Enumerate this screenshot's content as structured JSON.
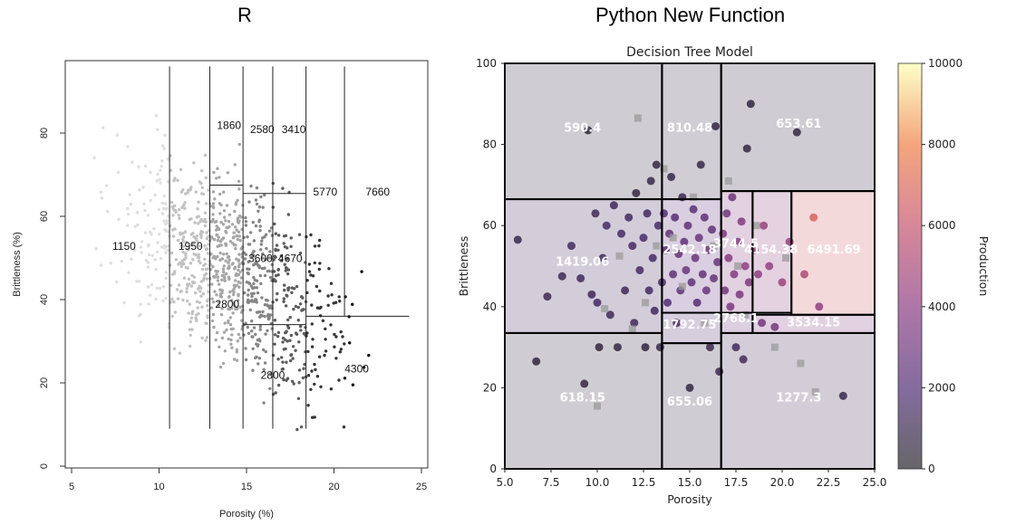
{
  "panels": {
    "left_title": "R",
    "right_title": "Python New Function"
  },
  "chart_data": [
    {
      "type": "scatter",
      "title": "",
      "xlabel": "Porosity (%)",
      "ylabel": "Brittleness (%)",
      "xlim": [
        5,
        25
      ],
      "ylim": [
        0,
        100
      ],
      "xticks": [
        5,
        10,
        15,
        20,
        25
      ],
      "yticks": [
        0,
        20,
        40,
        60,
        80
      ],
      "grid": false,
      "splits": [
        {
          "orient": "v",
          "at": 10.6,
          "from": 9,
          "to": 96
        },
        {
          "orient": "v",
          "at": 12.9,
          "from": 9,
          "to": 96
        },
        {
          "orient": "v",
          "at": 14.8,
          "from": 9,
          "to": 96
        },
        {
          "orient": "v",
          "at": 16.5,
          "from": 9,
          "to": 96
        },
        {
          "orient": "v",
          "at": 18.4,
          "from": 9,
          "to": 96
        },
        {
          "orient": "v",
          "at": 20.6,
          "from": 36,
          "to": 96
        },
        {
          "orient": "h",
          "at": 36,
          "from": 18.4,
          "to": 24.3
        },
        {
          "orient": "h",
          "at": 67.5,
          "from": 12.9,
          "to": 14.8
        },
        {
          "orient": "h",
          "at": 65.5,
          "from": 14.8,
          "to": 18.4
        },
        {
          "orient": "h",
          "at": 34,
          "from": 14.8,
          "to": 18.4
        }
      ],
      "leaf_labels": [
        {
          "text": "1150",
          "x": 8.0,
          "y": 52
        },
        {
          "text": "1950",
          "x": 11.8,
          "y": 52
        },
        {
          "text": "1860",
          "x": 14.0,
          "y": 81
        },
        {
          "text": "2580",
          "x": 15.9,
          "y": 80
        },
        {
          "text": "3410",
          "x": 17.7,
          "y": 80
        },
        {
          "text": "5770",
          "x": 19.5,
          "y": 65
        },
        {
          "text": "7660",
          "x": 22.5,
          "y": 65
        },
        {
          "text": "3600",
          "x": 15.8,
          "y": 49
        },
        {
          "text": "4670",
          "x": 17.5,
          "y": 49
        },
        {
          "text": "2800",
          "x": 13.9,
          "y": 38
        },
        {
          "text": "2800",
          "x": 16.5,
          "y": 21
        },
        {
          "text": "4300",
          "x": 21.3,
          "y": 22.5
        }
      ],
      "colors": {
        "levels": [
          "#dedede",
          "#c2c2c2",
          "#a6a6a6",
          "#858585",
          "#5c5c5c",
          "#353535",
          "#111111"
        ]
      }
    },
    {
      "type": "scatter",
      "title": "Decision Tree Model",
      "xlabel": "Porosity",
      "ylabel": "Brittleness",
      "xlim": [
        5,
        25
      ],
      "ylim": [
        0,
        100
      ],
      "xticks": [
        5.0,
        7.5,
        10.0,
        12.5,
        15.0,
        17.5,
        20.0,
        22.5,
        25.0
      ],
      "yticks": [
        0,
        20,
        40,
        60,
        80,
        100
      ],
      "grid": false,
      "colorbar": {
        "label": "Production",
        "min": 0,
        "max": 10000,
        "ticks": [
          0,
          2000,
          4000,
          6000,
          8000,
          10000
        ]
      },
      "regions": [
        {
          "x0": 5,
          "x1": 13.5,
          "y0": 66.5,
          "y1": 100,
          "value": 590.4
        },
        {
          "x0": 13.5,
          "x1": 16.7,
          "y0": 66.5,
          "y1": 100,
          "value": 810.48
        },
        {
          "x0": 16.7,
          "x1": 25,
          "y0": 68.5,
          "y1": 100,
          "value": 653.61
        },
        {
          "x0": 5,
          "x1": 13.5,
          "y0": 33.5,
          "y1": 66.5,
          "value": 1419.06
        },
        {
          "x0": 13.5,
          "x1": 16.7,
          "y0": 38.5,
          "y1": 66.5,
          "value": 2542.18
        },
        {
          "x0": 16.7,
          "x1": 18.4,
          "y0": 38.5,
          "y1": 68.5,
          "value": 3744.5
        },
        {
          "x0": 18.4,
          "x1": 20.5,
          "y0": 38.5,
          "y1": 68.5,
          "value": 4154.38
        },
        {
          "x0": 20.5,
          "x1": 25,
          "y0": 38,
          "y1": 68.5,
          "value": 6491.69
        },
        {
          "x0": 13.5,
          "x1": 16.7,
          "y0": 31,
          "y1": 38.5,
          "value": 1792.75
        },
        {
          "x0": 16.7,
          "x1": 18.4,
          "y0": 33.5,
          "y1": 38.5,
          "value": 2768.1
        },
        {
          "x0": 18.4,
          "x1": 25,
          "y0": 33.5,
          "y1": 38,
          "value": 3534.15
        },
        {
          "x0": 5,
          "x1": 13.5,
          "y0": 0,
          "y1": 33.5,
          "value": 618.15
        },
        {
          "x0": 13.5,
          "x1": 16.7,
          "y0": 0,
          "y1": 31,
          "value": 655.06
        },
        {
          "x0": 16.7,
          "x1": 25,
          "y0": 0,
          "y1": 33.5,
          "value": 1277.3
        }
      ],
      "leaf_labels": [
        {
          "text": "590.4",
          "x": 9.2,
          "y": 84
        },
        {
          "text": "810.48",
          "x": 15.0,
          "y": 84
        },
        {
          "text": "653.61",
          "x": 20.9,
          "y": 85
        },
        {
          "text": "1419.06",
          "x": 9.2,
          "y": 51
        },
        {
          "text": "2542.18",
          "x": 15.0,
          "y": 54
        },
        {
          "text": "3744.5",
          "x": 17.5,
          "y": 55.5
        },
        {
          "text": "4154.38",
          "x": 19.4,
          "y": 54
        },
        {
          "text": "6491.69",
          "x": 22.8,
          "y": 54
        },
        {
          "text": "1792.75",
          "x": 15.0,
          "y": 35.5
        },
        {
          "text": "2768.1",
          "x": 17.5,
          "y": 37
        },
        {
          "text": "3534.15",
          "x": 21.7,
          "y": 36
        },
        {
          "text": "618.15",
          "x": 9.2,
          "y": 17.5
        },
        {
          "text": "655.06",
          "x": 15.0,
          "y": 16.5
        },
        {
          "text": "1277.3",
          "x": 20.9,
          "y": 17.5
        }
      ],
      "points": [
        [
          5.7,
          56.5,
          900
        ],
        [
          6.7,
          26.5,
          600
        ],
        [
          7.3,
          42.5,
          1100
        ],
        [
          8.1,
          47.5,
          1200
        ],
        [
          8.6,
          55,
          1400
        ],
        [
          9.1,
          47,
          1300
        ],
        [
          9.3,
          21,
          700
        ],
        [
          9.5,
          83.5,
          500
        ],
        [
          9.7,
          43,
          1200
        ],
        [
          9.9,
          63,
          1300
        ],
        [
          10.0,
          41,
          1500
        ],
        [
          10.1,
          30,
          600
        ],
        [
          10.3,
          52,
          1400
        ],
        [
          10.5,
          60,
          1600
        ],
        [
          10.7,
          38,
          1300
        ],
        [
          10.9,
          65,
          1200
        ],
        [
          11.1,
          30,
          700
        ],
        [
          11.3,
          58,
          1500
        ],
        [
          11.5,
          44,
          1200
        ],
        [
          11.7,
          62,
          1400
        ],
        [
          11.9,
          55,
          1600
        ],
        [
          12.0,
          36,
          1300
        ],
        [
          12.1,
          68,
          700
        ],
        [
          12.3,
          49,
          1500
        ],
        [
          12.5,
          57,
          1700
        ],
        [
          12.6,
          30,
          600
        ],
        [
          12.7,
          63,
          1500
        ],
        [
          12.8,
          44,
          1400
        ],
        [
          12.9,
          71,
          900
        ],
        [
          13.0,
          52,
          1600
        ],
        [
          13.1,
          39,
          1300
        ],
        [
          13.2,
          75,
          800
        ],
        [
          13.3,
          60,
          1700
        ],
        [
          13.4,
          30,
          900
        ],
        [
          13.5,
          46,
          1500
        ],
        [
          13.6,
          63,
          2000
        ],
        [
          13.7,
          54,
          2300
        ],
        [
          13.8,
          41,
          2000
        ],
        [
          13.9,
          58,
          2600
        ],
        [
          14.0,
          72,
          900
        ],
        [
          14.1,
          48,
          2500
        ],
        [
          14.2,
          62,
          2200
        ],
        [
          14.3,
          36,
          1700
        ],
        [
          14.4,
          53,
          2800
        ],
        [
          14.5,
          44,
          2400
        ],
        [
          14.6,
          67,
          1000
        ],
        [
          14.7,
          56,
          2700
        ],
        [
          14.8,
          49,
          3000
        ],
        [
          14.9,
          60,
          2600
        ],
        [
          15.0,
          20,
          700
        ],
        [
          15.1,
          46,
          2500
        ],
        [
          15.2,
          64,
          2300
        ],
        [
          15.3,
          52,
          2900
        ],
        [
          15.4,
          41,
          2200
        ],
        [
          15.5,
          57,
          2800
        ],
        [
          15.6,
          75,
          800
        ],
        [
          15.7,
          48,
          2700
        ],
        [
          15.8,
          62,
          2500
        ],
        [
          15.9,
          44,
          2900
        ],
        [
          16.0,
          54,
          3100
        ],
        [
          16.1,
          30,
          1000
        ],
        [
          16.2,
          59,
          2600
        ],
        [
          16.3,
          47,
          2800
        ],
        [
          16.4,
          84.5,
          700
        ],
        [
          16.5,
          51,
          3000
        ],
        [
          16.6,
          24,
          1200
        ],
        [
          16.8,
          58,
          3600
        ],
        [
          16.9,
          44,
          3300
        ],
        [
          17.0,
          63,
          3200
        ],
        [
          17.1,
          52,
          3900
        ],
        [
          17.2,
          40,
          3500
        ],
        [
          17.3,
          67,
          3000
        ],
        [
          17.4,
          48,
          3800
        ],
        [
          17.5,
          30,
          1400
        ],
        [
          17.6,
          56,
          4000
        ],
        [
          17.7,
          43,
          3400
        ],
        [
          17.8,
          61,
          3700
        ],
        [
          17.9,
          27,
          1300
        ],
        [
          18.0,
          50,
          4200
        ],
        [
          18.1,
          79,
          700
        ],
        [
          18.2,
          46,
          3600
        ],
        [
          18.3,
          90,
          600
        ],
        [
          18.5,
          54,
          4400
        ],
        [
          18.7,
          48,
          4100
        ],
        [
          18.9,
          36,
          3300
        ],
        [
          19.0,
          60,
          4500
        ],
        [
          19.3,
          50,
          4300
        ],
        [
          19.6,
          35,
          3400
        ],
        [
          20.0,
          46,
          4700
        ],
        [
          20.4,
          56,
          4500
        ],
        [
          20.8,
          83,
          700
        ],
        [
          21.2,
          48,
          5200
        ],
        [
          21.7,
          62,
          6800
        ],
        [
          22.0,
          40,
          4100
        ],
        [
          23.3,
          18,
          900
        ]
      ],
      "squares": [
        [
          10.0,
          15.5,
          900
        ],
        [
          10.4,
          39.5,
          1400
        ],
        [
          11.2,
          52.5,
          1500
        ],
        [
          11.9,
          34.5,
          1300
        ],
        [
          12.2,
          86.5,
          600
        ],
        [
          12.6,
          41,
          1600
        ],
        [
          13.2,
          55,
          1800
        ],
        [
          13.6,
          74,
          900
        ],
        [
          14.1,
          57,
          2300
        ],
        [
          14.6,
          45,
          2400
        ],
        [
          15.2,
          67,
          1000
        ],
        [
          15.8,
          36,
          1800
        ],
        [
          16.3,
          55,
          2800
        ],
        [
          17.1,
          71,
          800
        ],
        [
          17.6,
          50,
          3700
        ],
        [
          18.0,
          38,
          2900
        ],
        [
          18.6,
          60,
          4300
        ],
        [
          19.6,
          30,
          1400
        ],
        [
          20.2,
          52,
          4600
        ],
        [
          21.0,
          26,
          1300
        ],
        [
          21.8,
          19,
          1000
        ]
      ]
    }
  ]
}
